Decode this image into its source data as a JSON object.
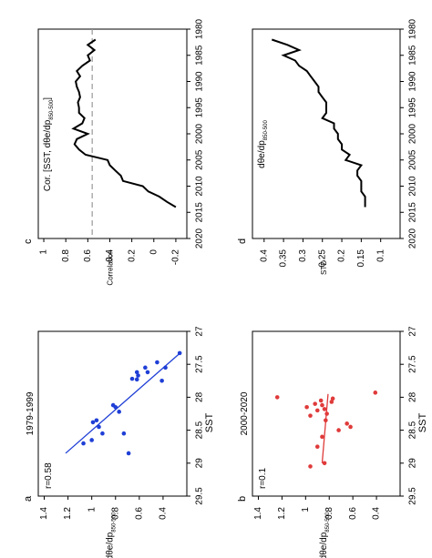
{
  "chart_data": [
    {
      "panel": "a",
      "type": "scatter",
      "subtitle": "1979-1999",
      "annotation": "r=0.58",
      "xlabel": "SST",
      "ylabel_main": "dθe/dp",
      "ylabel_sub": "850-500",
      "xlim": [
        27,
        29.5
      ],
      "ylim": [
        0.2,
        1.45
      ],
      "xticks": [
        "27",
        "27.5",
        "28",
        "28.5",
        "29",
        "29.5"
      ],
      "yticks": [
        "0.4",
        "0.6",
        "0.8",
        "1",
        "1.2",
        "1.4"
      ],
      "color": "#1f3fd6",
      "points": [
        [
          27.33,
          0.26
        ],
        [
          27.47,
          0.45
        ],
        [
          27.55,
          0.38
        ],
        [
          27.55,
          0.55
        ],
        [
          27.62,
          0.53
        ],
        [
          27.62,
          0.62
        ],
        [
          27.67,
          0.61
        ],
        [
          27.72,
          0.66
        ],
        [
          27.73,
          0.62
        ],
        [
          27.75,
          0.41
        ],
        [
          28.12,
          0.82
        ],
        [
          28.15,
          0.8
        ],
        [
          28.22,
          0.77
        ],
        [
          28.35,
          0.96
        ],
        [
          28.38,
          0.99
        ],
        [
          28.45,
          0.94
        ],
        [
          28.55,
          0.91
        ],
        [
          28.55,
          0.73
        ],
        [
          28.65,
          1.0
        ],
        [
          28.7,
          1.07
        ],
        [
          28.85,
          0.69
        ]
      ],
      "fit": [
        [
          27.35,
          0.27
        ],
        [
          28.85,
          1.22
        ]
      ]
    },
    {
      "panel": "b",
      "type": "scatter",
      "subtitle": "2000-2020",
      "annotation": "r=0.1",
      "xlabel": "SST",
      "ylabel_main": "dθe/dp",
      "ylabel_sub": "850-500",
      "xlim": [
        27,
        29.5
      ],
      "ylim": [
        0.2,
        1.45
      ],
      "xticks": [
        "27",
        "27.5",
        "28",
        "28.5",
        "29",
        "29.5"
      ],
      "yticks": [
        "0.4",
        "0.6",
        "0.8",
        "1",
        "1.2",
        "1.4"
      ],
      "color": "#e03a3a",
      "points": [
        [
          27.93,
          0.41
        ],
        [
          28.0,
          1.24
        ],
        [
          28.02,
          0.77
        ],
        [
          28.05,
          0.87
        ],
        [
          28.07,
          0.78
        ],
        [
          28.1,
          0.92
        ],
        [
          28.12,
          0.86
        ],
        [
          28.15,
          0.99
        ],
        [
          28.18,
          0.84
        ],
        [
          28.2,
          0.9
        ],
        [
          28.25,
          0.82
        ],
        [
          28.28,
          0.96
        ],
        [
          28.35,
          0.83
        ],
        [
          28.4,
          0.65
        ],
        [
          28.45,
          0.62
        ],
        [
          28.5,
          0.72
        ],
        [
          28.6,
          0.86
        ],
        [
          28.75,
          0.9
        ],
        [
          29.0,
          0.84
        ],
        [
          29.05,
          0.96
        ]
      ],
      "fit": [
        [
          27.95,
          0.81
        ],
        [
          29.0,
          0.86
        ]
      ]
    },
    {
      "panel": "c",
      "type": "line",
      "annotation": "Cor. [SST, dθe/dp",
      "annotation_sub": "850-500",
      "annotation_end": "]",
      "ylabel": "Correlation",
      "xlim": [
        1980,
        2020
      ],
      "ylim": [
        -0.3,
        1.05
      ],
      "xticks": [
        "1980",
        "1985",
        "1990",
        "1995",
        "2000",
        "2005",
        "2010",
        "2015",
        "2020"
      ],
      "yticks": [
        "-0.2",
        "0",
        "0.2",
        "0.4",
        "0.6",
        "0.8",
        "1"
      ],
      "reference_line": 0.56,
      "x": [
        1982,
        1983,
        1984,
        1985,
        1986,
        1987,
        1988,
        1989,
        1990,
        1991,
        1992,
        1993,
        1994,
        1995,
        1996,
        1997,
        1998,
        1999,
        2000,
        2001,
        2002,
        2003,
        2004,
        2005,
        2006,
        2007,
        2008,
        2009,
        2010,
        2011,
        2012,
        2013,
        2014
      ],
      "values": [
        0.53,
        0.6,
        0.54,
        0.6,
        0.58,
        0.65,
        0.7,
        0.67,
        0.71,
        0.7,
        0.68,
        0.67,
        0.69,
        0.68,
        0.68,
        0.63,
        0.65,
        0.73,
        0.6,
        0.7,
        0.72,
        0.68,
        0.62,
        0.42,
        0.4,
        0.35,
        0.3,
        0.28,
        0.1,
        0.05,
        -0.05,
        -0.12,
        -0.2
      ]
    },
    {
      "panel": "d",
      "type": "line",
      "annotation": "dθe/dp",
      "annotation_sub": "850-500",
      "ylabel": "STD",
      "xlim": [
        1980,
        2020
      ],
      "ylim": [
        0.05,
        0.43
      ],
      "xticks": [
        "1980",
        "1985",
        "1990",
        "1995",
        "2000",
        "2005",
        "2010",
        "2015",
        "2020"
      ],
      "yticks": [
        "0.1",
        "0.15",
        "0.2",
        "0.25",
        "0.3",
        "0.35",
        "0.4"
      ],
      "x": [
        1982,
        1983,
        1984,
        1985,
        1986,
        1987,
        1988,
        1989,
        1990,
        1991,
        1992,
        1993,
        1994,
        1995,
        1996,
        1997,
        1998,
        1999,
        2000,
        2001,
        2002,
        2003,
        2004,
        2005,
        2006,
        2007,
        2008,
        2009,
        2010,
        2011,
        2012,
        2013,
        2014
      ],
      "values": [
        0.38,
        0.34,
        0.31,
        0.35,
        0.32,
        0.31,
        0.29,
        0.28,
        0.27,
        0.26,
        0.26,
        0.25,
        0.24,
        0.24,
        0.24,
        0.25,
        0.22,
        0.22,
        0.21,
        0.21,
        0.2,
        0.2,
        0.18,
        0.19,
        0.15,
        0.16,
        0.16,
        0.15,
        0.15,
        0.15,
        0.14,
        0.14,
        0.14
      ]
    }
  ]
}
